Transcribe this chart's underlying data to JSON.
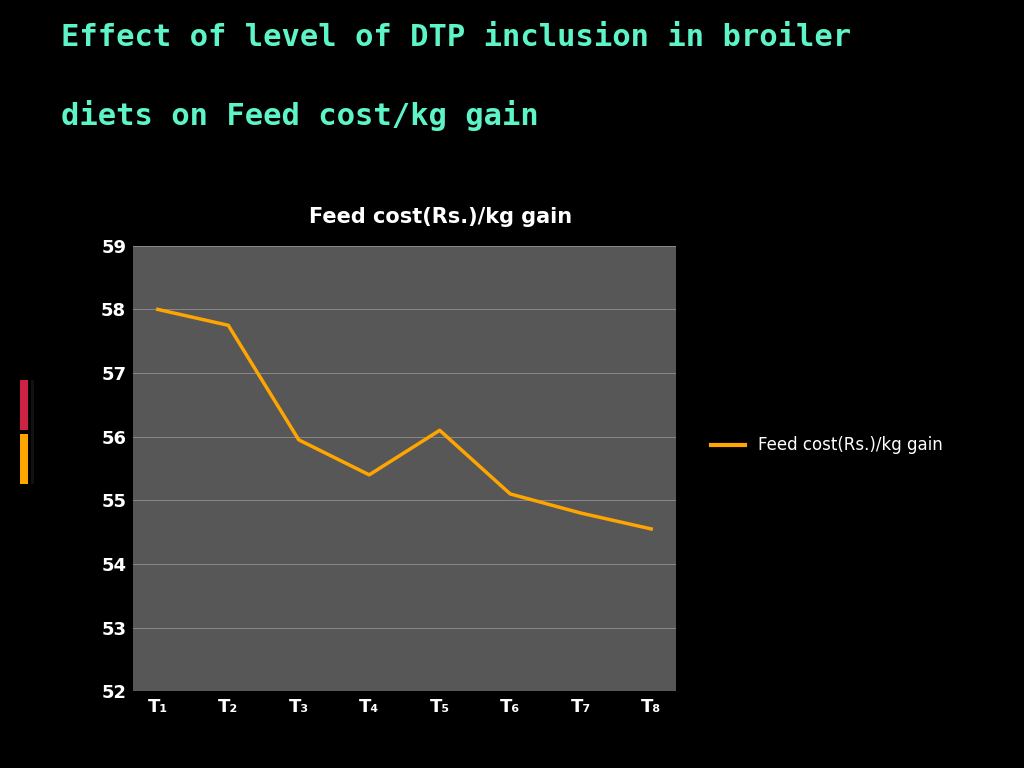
{
  "title_line1": "Effect of level of DTP inclusion in broiler",
  "title_line2": "diets on Feed cost/kg gain",
  "title_color": "#5DF5C8",
  "chart_title": "Feed cost(Rs.)/kg gain",
  "categories": [
    "T₁",
    "T₂",
    "T₃",
    "T₄",
    "T₅",
    "T₆",
    "T₇",
    "T₈"
  ],
  "values": [
    58.0,
    57.75,
    55.95,
    55.4,
    56.1,
    55.1,
    54.8,
    54.55
  ],
  "line_color": "#FFA500",
  "line_width": 2.5,
  "ylim": [
    52,
    59
  ],
  "yticks": [
    52,
    53,
    54,
    55,
    56,
    57,
    58,
    59
  ],
  "background_color": "#000000",
  "plot_bg_color": "#575757",
  "grid_color": "#888888",
  "text_color": "#ffffff",
  "legend_label": "Feed cost(Rs.)/kg gain",
  "legend_line_color": "#FFA500",
  "left_bar1_color": "#cc2244",
  "left_bar2_color": "#FFA500",
  "title_fontsize": 22,
  "chart_title_fontsize": 15,
  "tick_fontsize": 13
}
